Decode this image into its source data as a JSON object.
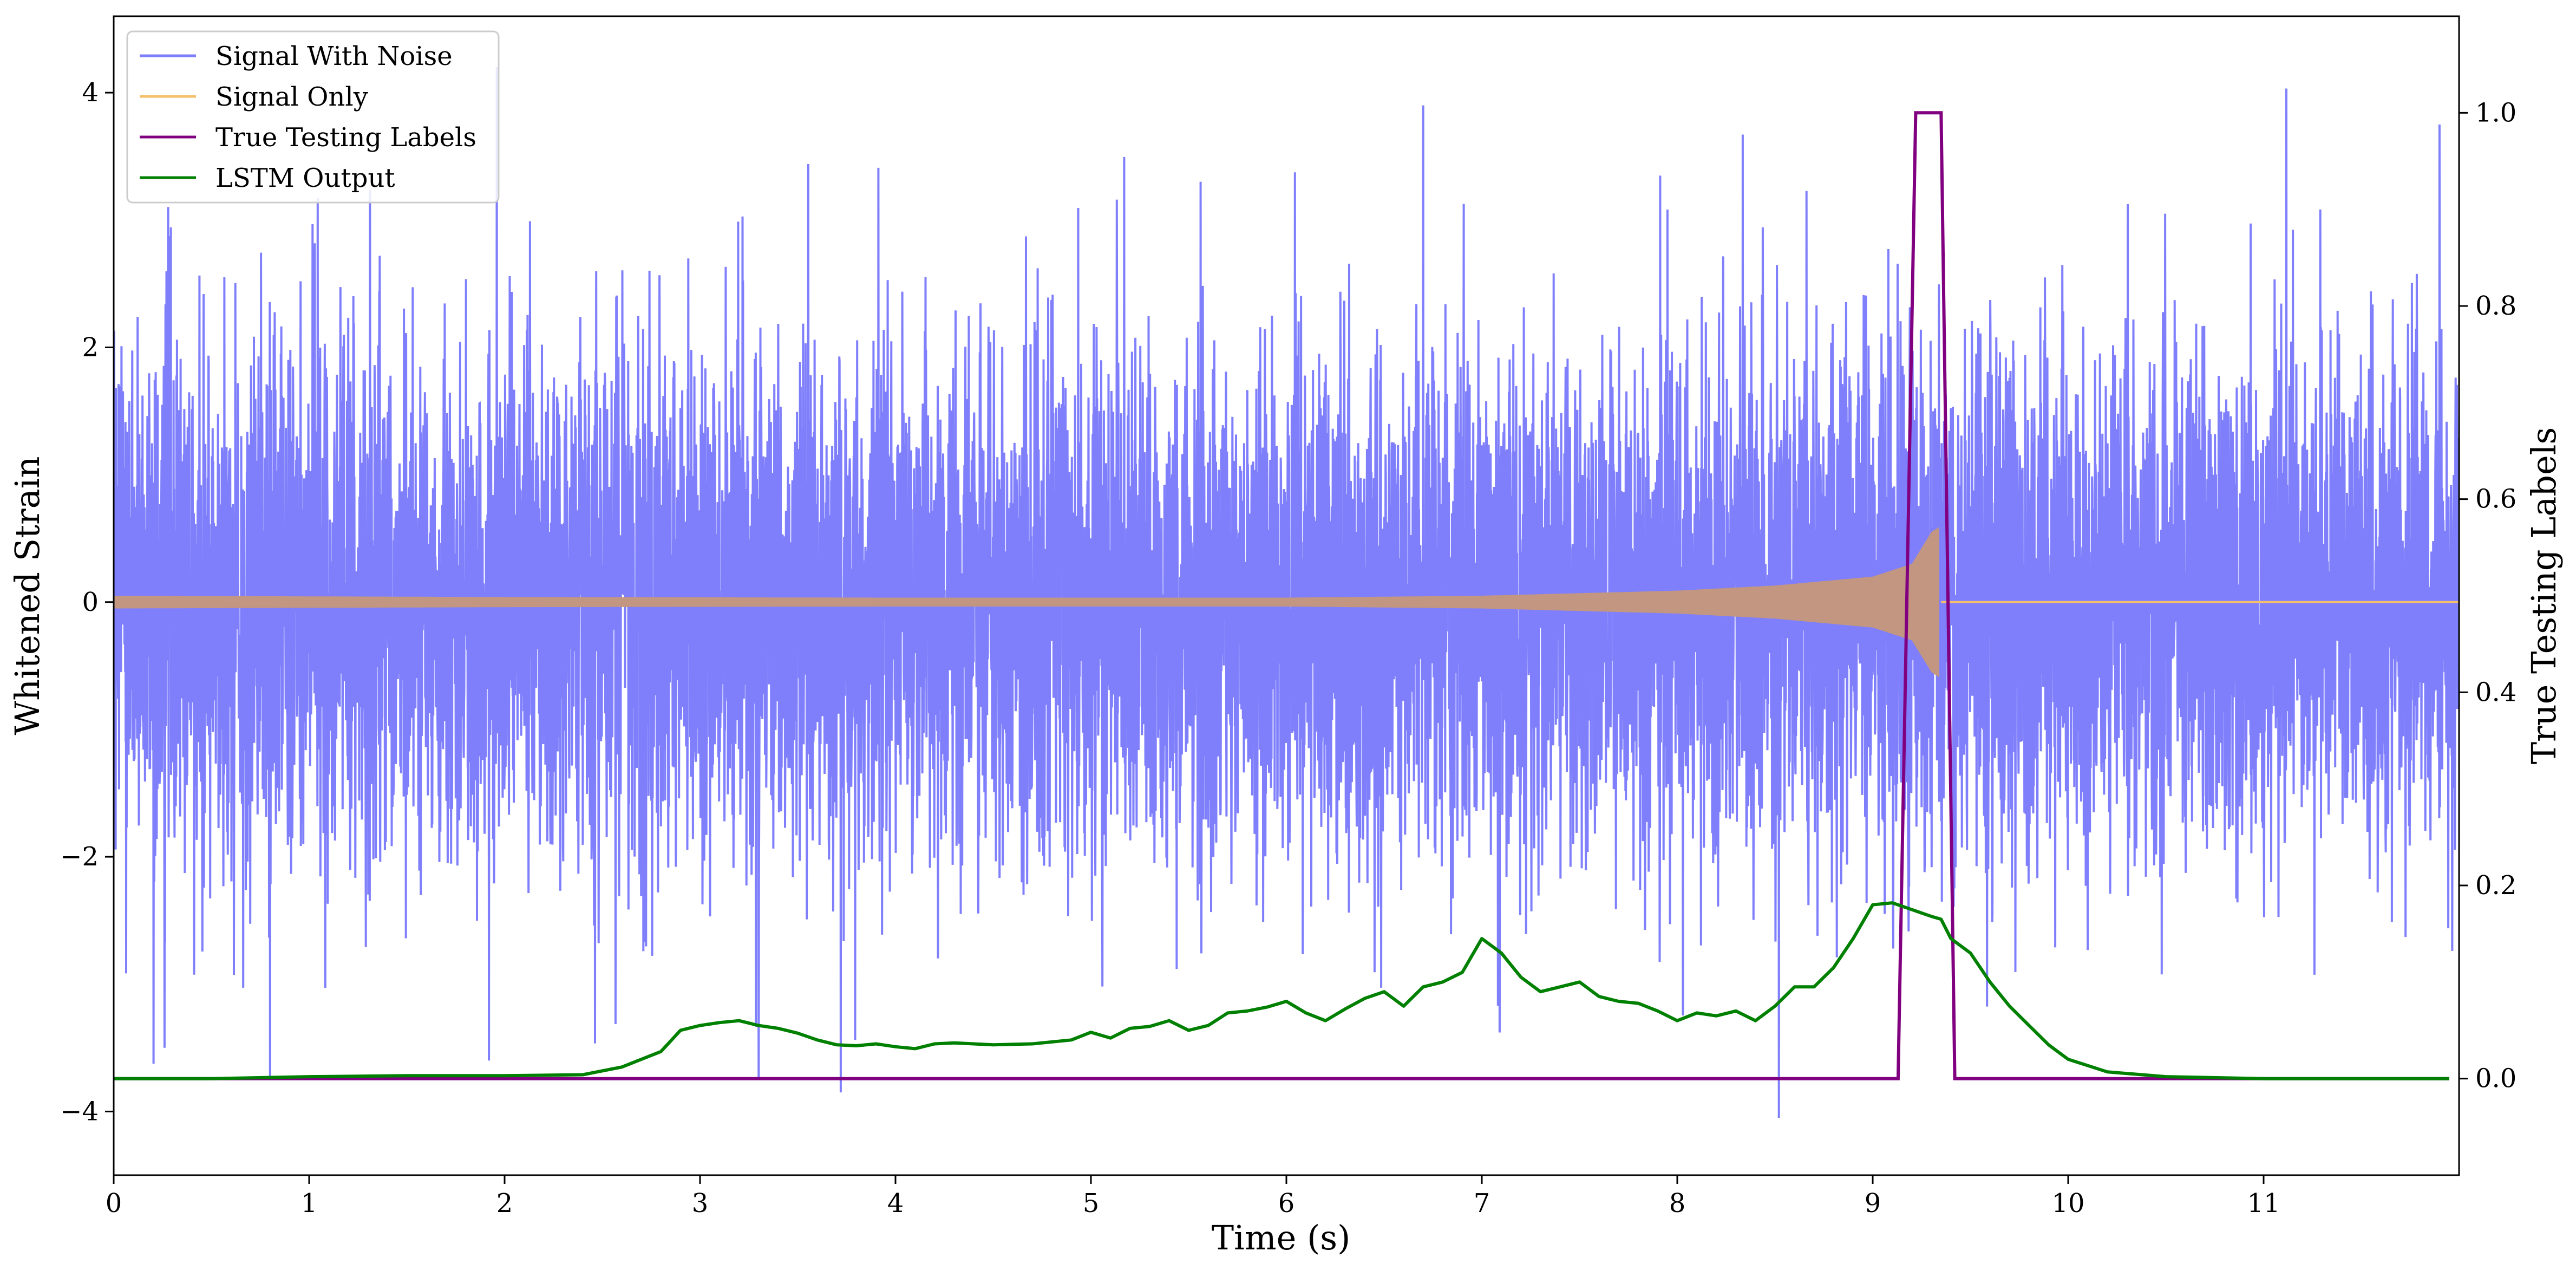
{
  "chart_data": {
    "type": "line",
    "xlabel": "Time (s)",
    "ylabel": "Whitened Strain",
    "y2label": "True Testing Labels",
    "xlim": [
      0,
      12
    ],
    "ylim": [
      -4.5,
      4.6
    ],
    "y2lim": [
      -0.1,
      1.1
    ],
    "xticks": [
      "0",
      "1",
      "2",
      "3",
      "4",
      "5",
      "6",
      "7",
      "8",
      "9",
      "10",
      "11"
    ],
    "yticks": [
      "−4",
      "−2",
      "0",
      "2",
      "4"
    ],
    "y2ticks": [
      "0.0",
      "0.2",
      "0.4",
      "0.6",
      "0.8",
      "1.0"
    ],
    "grid": false,
    "legend_position": "top-left",
    "colors": {
      "noise": "#7f7ffc",
      "signal": "#f5bf6c",
      "chirp": "#c29681",
      "labels": "#800080",
      "lstm": "#008000"
    },
    "series": [
      {
        "name": "Signal With Noise",
        "axis": "left",
        "description_only": true,
        "sample_rate_hz": 800,
        "noise_std": 1.0,
        "notable_extremes": [
          [
            0.26,
            -3.5
          ],
          [
            0.8,
            -3.72
          ],
          [
            1.92,
            -3.6
          ],
          [
            1.96,
            4.2
          ],
          [
            3.3,
            -3.75
          ],
          [
            3.72,
            -3.85
          ],
          [
            6.7,
            3.9
          ],
          [
            8.52,
            -4.05
          ],
          [
            11.9,
            3.75
          ]
        ]
      },
      {
        "name": "Signal Only",
        "axis": "left",
        "chirp_envelope": {
          "t": [
            0,
            2,
            4,
            6,
            7,
            8,
            8.5,
            9,
            9.2,
            9.3,
            9.35
          ],
          "amp": [
            0.05,
            0.04,
            0.035,
            0.035,
            0.05,
            0.09,
            0.13,
            0.2,
            0.3,
            0.55,
            0.6
          ]
        },
        "merger_time": 9.35
      },
      {
        "name": "True Testing Labels",
        "axis": "right",
        "x": [
          0,
          9.13,
          9.22,
          9.35,
          9.42,
          11.95
        ],
        "y": [
          0,
          0,
          1,
          1,
          0,
          0
        ]
      },
      {
        "name": "LSTM Output",
        "axis": "right",
        "x": [
          0,
          0.5,
          1.0,
          1.5,
          2.0,
          2.4,
          2.6,
          2.8,
          2.9,
          3.0,
          3.1,
          3.2,
          3.3,
          3.4,
          3.5,
          3.6,
          3.7,
          3.8,
          3.9,
          4.0,
          4.1,
          4.2,
          4.3,
          4.5,
          4.7,
          4.9,
          5.0,
          5.1,
          5.2,
          5.3,
          5.4,
          5.5,
          5.6,
          5.7,
          5.8,
          5.9,
          6.0,
          6.1,
          6.2,
          6.3,
          6.4,
          6.5,
          6.6,
          6.7,
          6.8,
          6.9,
          7.0,
          7.1,
          7.2,
          7.3,
          7.4,
          7.5,
          7.6,
          7.7,
          7.8,
          7.9,
          8.0,
          8.1,
          8.2,
          8.3,
          8.4,
          8.5,
          8.6,
          8.7,
          8.8,
          8.9,
          9.0,
          9.1,
          9.2,
          9.3,
          9.35,
          9.4,
          9.5,
          9.6,
          9.7,
          9.8,
          9.9,
          10.0,
          10.2,
          10.5,
          11.0,
          11.95
        ],
        "y": [
          0.0,
          0.0,
          0.002,
          0.003,
          0.003,
          0.004,
          0.012,
          0.028,
          0.05,
          0.055,
          0.058,
          0.06,
          0.055,
          0.052,
          0.047,
          0.04,
          0.035,
          0.034,
          0.036,
          0.033,
          0.031,
          0.036,
          0.037,
          0.035,
          0.036,
          0.04,
          0.048,
          0.042,
          0.052,
          0.054,
          0.06,
          0.05,
          0.055,
          0.068,
          0.07,
          0.074,
          0.08,
          0.068,
          0.06,
          0.072,
          0.083,
          0.09,
          0.075,
          0.095,
          0.1,
          0.11,
          0.145,
          0.13,
          0.105,
          0.09,
          0.095,
          0.1,
          0.085,
          0.08,
          0.078,
          0.07,
          0.06,
          0.068,
          0.065,
          0.07,
          0.06,
          0.075,
          0.095,
          0.095,
          0.115,
          0.145,
          0.18,
          0.182,
          0.175,
          0.168,
          0.165,
          0.145,
          0.13,
          0.1,
          0.075,
          0.055,
          0.035,
          0.02,
          0.007,
          0.002,
          0.0,
          0.0
        ]
      }
    ]
  }
}
